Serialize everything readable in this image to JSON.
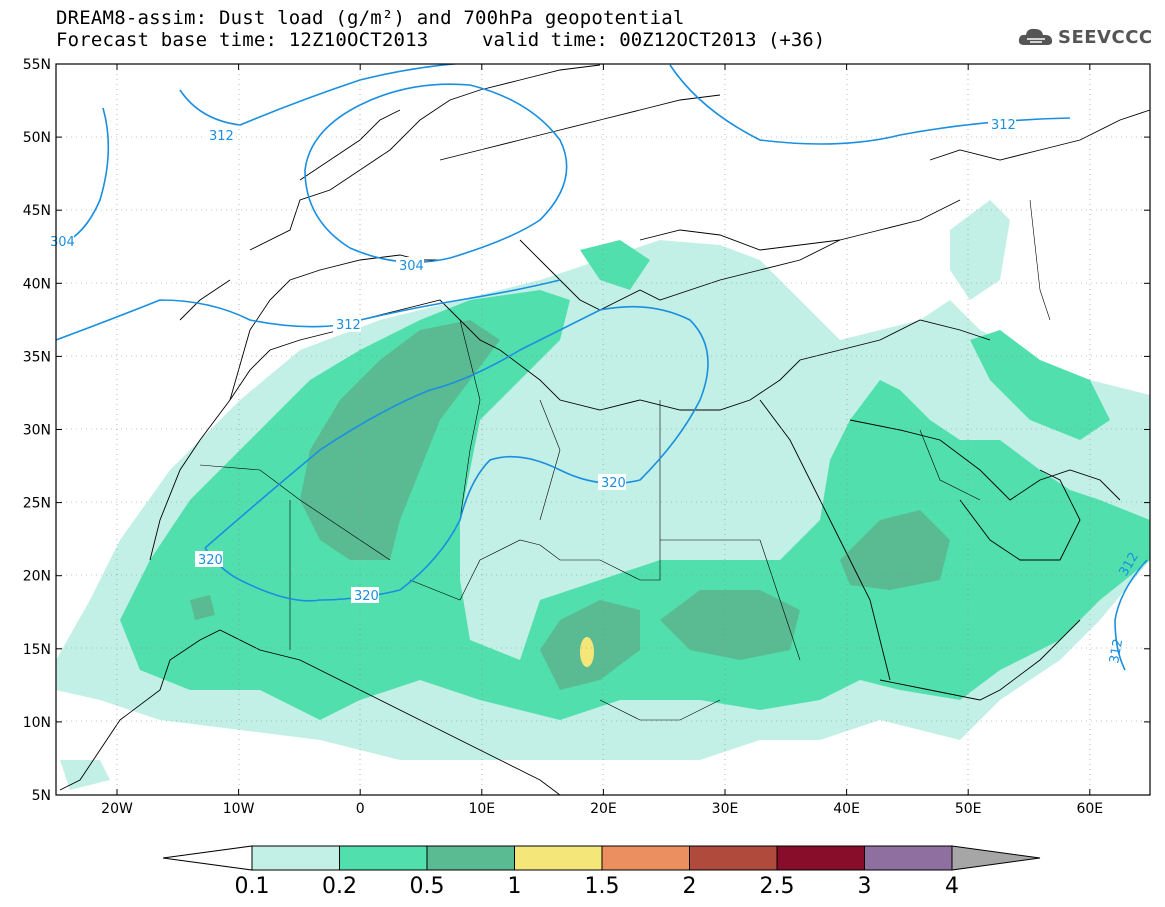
{
  "header": {
    "line1": "DREAM8-assim: Dust load (g/m²) and 700hPa geopotential",
    "line2_left": "Forecast base time: 12Z10OCT2013",
    "line2_right": "valid time: 00Z12OCT2013 (+36)"
  },
  "logo": {
    "text": "SEEVCCC",
    "icon": "cloud-icon"
  },
  "axes": {
    "lat_labels": [
      "55N",
      "50N",
      "45N",
      "40N",
      "35N",
      "30N",
      "25N",
      "20N",
      "15N",
      "10N",
      "5N"
    ],
    "lon_labels": [
      "20W",
      "10W",
      "0",
      "10E",
      "20E",
      "30E",
      "40E",
      "50E",
      "60E"
    ]
  },
  "contour_labels": [
    "312",
    "304",
    "304",
    "312",
    "320",
    "320",
    "320",
    "312",
    "312",
    "312"
  ],
  "colorbar": {
    "ticks": [
      "0.1",
      "0.2",
      "0.5",
      "1",
      "1.5",
      "2",
      "2.5",
      "3",
      "4"
    ],
    "colors": [
      "#c3f0e6",
      "#52dfae",
      "#5abb92",
      "#f5e67a",
      "#ec8f60",
      "#b04a3c",
      "#870d2a",
      "#8e6fa0",
      "#a6a6a6"
    ]
  },
  "colors": {
    "dust_low": "#c3f0e6",
    "dust_mid": "#52dfae",
    "dust_high": "#5abb92",
    "dust_peak": "#f5e67a",
    "geopotential": "#1a8fe0",
    "coast": "#000000"
  }
}
